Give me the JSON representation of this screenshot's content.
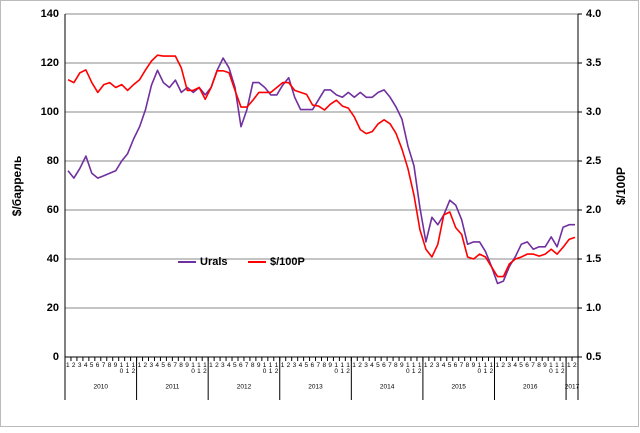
{
  "chart_data": {
    "type": "line",
    "y_label": "$/баррель",
    "y2_label": "$/100Р",
    "categories": [
      "1",
      "2",
      "3",
      "4",
      "5",
      "6",
      "7",
      "8",
      "9",
      "10",
      "11",
      "12",
      "1",
      "2",
      "3",
      "4",
      "5",
      "6",
      "7",
      "8",
      "9",
      "10",
      "11",
      "12",
      "1",
      "2",
      "3",
      "4",
      "5",
      "6",
      "7",
      "8",
      "9",
      "10",
      "11",
      "12",
      "1",
      "2",
      "3",
      "4",
      "5",
      "6",
      "7",
      "8",
      "9",
      "10",
      "11",
      "12",
      "1",
      "2",
      "3",
      "4",
      "5",
      "6",
      "7",
      "8",
      "9",
      "10",
      "11",
      "12",
      "1",
      "2",
      "3",
      "4",
      "5",
      "6",
      "7",
      "8",
      "9",
      "10",
      "11",
      "12",
      "1",
      "2",
      "3",
      "4",
      "5",
      "6",
      "7",
      "8",
      "9",
      "10",
      "11",
      "12",
      "1",
      "2"
    ],
    "years": [
      "2010",
      "2011",
      "2012",
      "2013",
      "2014",
      "2015",
      "2016",
      "2017"
    ],
    "series": [
      {
        "name": "Urals",
        "color": "#7030a0",
        "values": [
          76,
          73,
          77,
          82,
          75,
          73,
          74,
          75,
          76,
          80,
          83,
          89,
          94,
          101,
          111,
          117,
          112,
          110,
          113,
          108,
          110,
          108,
          110,
          107,
          110,
          117,
          122,
          118,
          110,
          94,
          101,
          112,
          112,
          110,
          107,
          107,
          111,
          114,
          106,
          101,
          101,
          101,
          105,
          109,
          109,
          107,
          106,
          108,
          106,
          108,
          106,
          106,
          108,
          109,
          106,
          102,
          97,
          86,
          78,
          61,
          47,
          57,
          54,
          58,
          64,
          62,
          56,
          46,
          47,
          47,
          43,
          37,
          30,
          31,
          37,
          41,
          46,
          47,
          44,
          45,
          45,
          49,
          45,
          53,
          54,
          54
        ]
      },
      {
        "name": "$/100Р",
        "color": "#ff0000",
        "axis": "y2",
        "values": [
          3.33,
          3.3,
          3.4,
          3.43,
          3.3,
          3.2,
          3.28,
          3.3,
          3.25,
          3.28,
          3.22,
          3.28,
          3.33,
          3.43,
          3.52,
          3.58,
          3.57,
          3.57,
          3.57,
          3.45,
          3.22,
          3.22,
          3.25,
          3.13,
          3.25,
          3.42,
          3.42,
          3.4,
          3.22,
          3.05,
          3.05,
          3.12,
          3.2,
          3.2,
          3.2,
          3.25,
          3.3,
          3.3,
          3.22,
          3.2,
          3.18,
          3.07,
          3.06,
          3.02,
          3.08,
          3.12,
          3.06,
          3.04,
          2.95,
          2.82,
          2.78,
          2.8,
          2.88,
          2.92,
          2.88,
          2.78,
          2.62,
          2.42,
          2.15,
          1.8,
          1.6,
          1.52,
          1.65,
          1.95,
          1.98,
          1.82,
          1.75,
          1.52,
          1.5,
          1.55,
          1.52,
          1.42,
          1.32,
          1.32,
          1.45,
          1.5,
          1.52,
          1.55,
          1.55,
          1.53,
          1.55,
          1.6,
          1.55,
          1.62,
          1.7,
          1.72
        ]
      }
    ],
    "ylim": [
      0,
      140
    ],
    "yticks": [
      0,
      20,
      40,
      60,
      80,
      100,
      120,
      140
    ],
    "y2lim": [
      0.5,
      4
    ],
    "y2ticks": [
      0.5,
      {
        "value": 1,
        "label": "1.0"
      },
      1.5,
      {
        "value": 2,
        "label": "2.0"
      },
      2.5,
      {
        "value": 3,
        "label": "3.0"
      },
      3.5,
      {
        "value": 4,
        "label": "4.0"
      }
    ],
    "grid": true
  }
}
